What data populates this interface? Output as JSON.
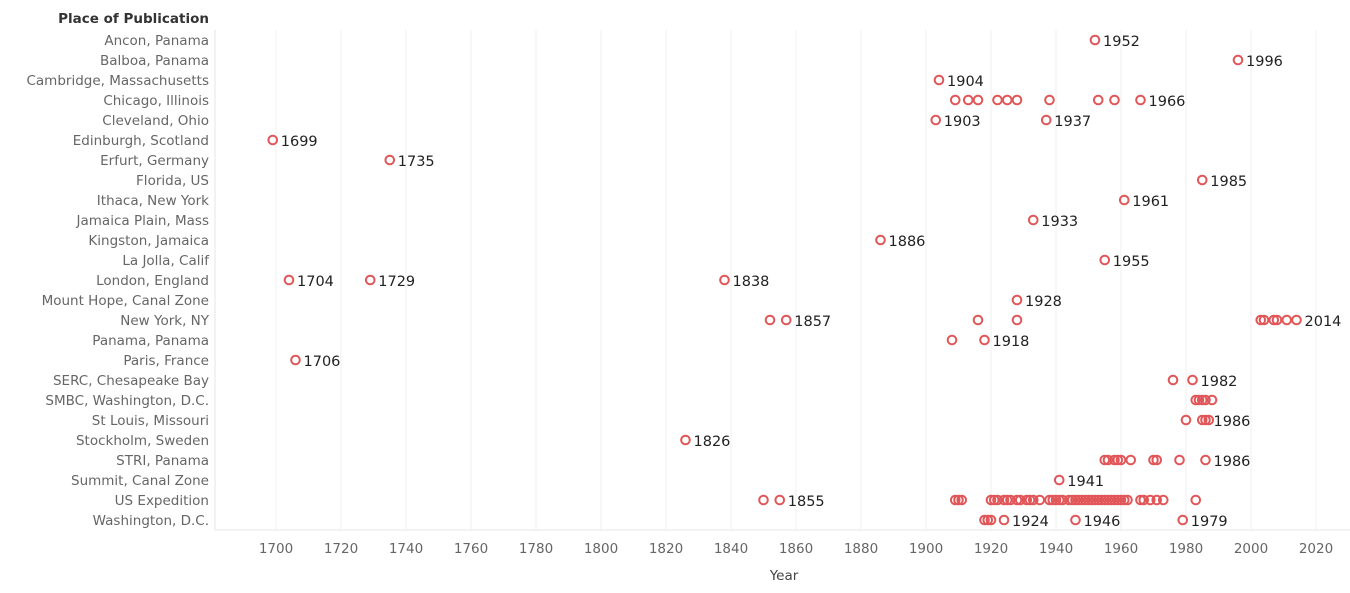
{
  "chart_data": {
    "type": "scatter",
    "title": "",
    "row_header": "Place of Publication",
    "xlabel": "Year",
    "xlim": [
      1680,
      2030
    ],
    "xticks": [
      1700,
      1720,
      1740,
      1760,
      1780,
      1800,
      1820,
      1840,
      1860,
      1880,
      1900,
      1920,
      1940,
      1960,
      1980,
      2000,
      2020
    ],
    "grid": "vertical",
    "marker_color": "#e15759",
    "rows": [
      {
        "place": "Ancon, Panama",
        "years": [
          1952
        ],
        "labels": [
          1952
        ]
      },
      {
        "place": "Balboa, Panama",
        "years": [
          1996
        ],
        "labels": [
          1996
        ]
      },
      {
        "place": "Cambridge, Massachusetts",
        "years": [
          1904
        ],
        "labels": [
          1904
        ]
      },
      {
        "place": "Chicago, Illinois",
        "years": [
          1909,
          1913,
          1916,
          1922,
          1925,
          1928,
          1938,
          1953,
          1958,
          1966
        ],
        "labels": [
          1966
        ]
      },
      {
        "place": "Cleveland, Ohio",
        "years": [
          1903,
          1937
        ],
        "labels": [
          1903,
          1937
        ]
      },
      {
        "place": "Edinburgh, Scotland",
        "years": [
          1699
        ],
        "labels": [
          1699
        ]
      },
      {
        "place": "Erfurt, Germany",
        "years": [
          1735
        ],
        "labels": [
          1735
        ]
      },
      {
        "place": "Florida, US",
        "years": [
          1985
        ],
        "labels": [
          1985
        ]
      },
      {
        "place": "Ithaca, New York",
        "years": [
          1961
        ],
        "labels": [
          1961
        ]
      },
      {
        "place": "Jamaica Plain, Mass",
        "years": [
          1933
        ],
        "labels": [
          1933
        ]
      },
      {
        "place": "Kingston, Jamaica",
        "years": [
          1886
        ],
        "labels": [
          1886
        ]
      },
      {
        "place": "La Jolla, Calif",
        "years": [
          1955
        ],
        "labels": [
          1955
        ]
      },
      {
        "place": "London, England",
        "years": [
          1704,
          1729,
          1838
        ],
        "labels": [
          1704,
          1729,
          1838
        ]
      },
      {
        "place": "Mount Hope, Canal Zone",
        "years": [
          1928
        ],
        "labels": [
          1928
        ]
      },
      {
        "place": "New York, NY",
        "years": [
          1852,
          1857,
          1916,
          1928,
          2003,
          2004,
          2007,
          2008,
          2011,
          2014
        ],
        "labels": [
          1857,
          2014
        ]
      },
      {
        "place": "Panama, Panama",
        "years": [
          1908,
          1918
        ],
        "labels": [
          1918
        ]
      },
      {
        "place": "Paris, France",
        "years": [
          1706
        ],
        "labels": [
          1706
        ]
      },
      {
        "place": "SERC, Chesapeake Bay",
        "years": [
          1976,
          1982
        ],
        "labels": [
          1982
        ]
      },
      {
        "place": "SMBC, Washington, D.C.",
        "years": [
          1983,
          1984,
          1985,
          1986,
          1988
        ],
        "labels": []
      },
      {
        "place": "St Louis, Missouri",
        "years": [
          1980,
          1985,
          1986,
          1987
        ],
        "labels": [
          1986
        ]
      },
      {
        "place": "Stockholm, Sweden",
        "years": [
          1826
        ],
        "labels": [
          1826
        ]
      },
      {
        "place": "STRI, Panama",
        "years": [
          1955,
          1956,
          1958,
          1959,
          1960,
          1963,
          1970,
          1971,
          1978,
          1986
        ],
        "labels": [
          1986
        ]
      },
      {
        "place": "Summit, Canal Zone",
        "years": [
          1941
        ],
        "labels": [
          1941
        ]
      },
      {
        "place": "US Expedition",
        "years": [
          1850,
          1855,
          1909,
          1910,
          1911,
          1920,
          1921,
          1922,
          1924,
          1925,
          1926,
          1928,
          1929,
          1931,
          1932,
          1933,
          1935,
          1938,
          1939,
          1940,
          1941,
          1942,
          1944,
          1945,
          1946,
          1947,
          1948,
          1949,
          1950,
          1951,
          1952,
          1953,
          1954,
          1955,
          1956,
          1957,
          1958,
          1959,
          1960,
          1961,
          1962,
          1966,
          1967,
          1969,
          1971,
          1973,
          1983
        ],
        "labels": [
          1855
        ]
      },
      {
        "place": "Washington, D.C.",
        "years": [
          1918,
          1919,
          1920,
          1924,
          1946,
          1979
        ],
        "labels": [
          1924,
          1946,
          1979
        ]
      }
    ]
  }
}
